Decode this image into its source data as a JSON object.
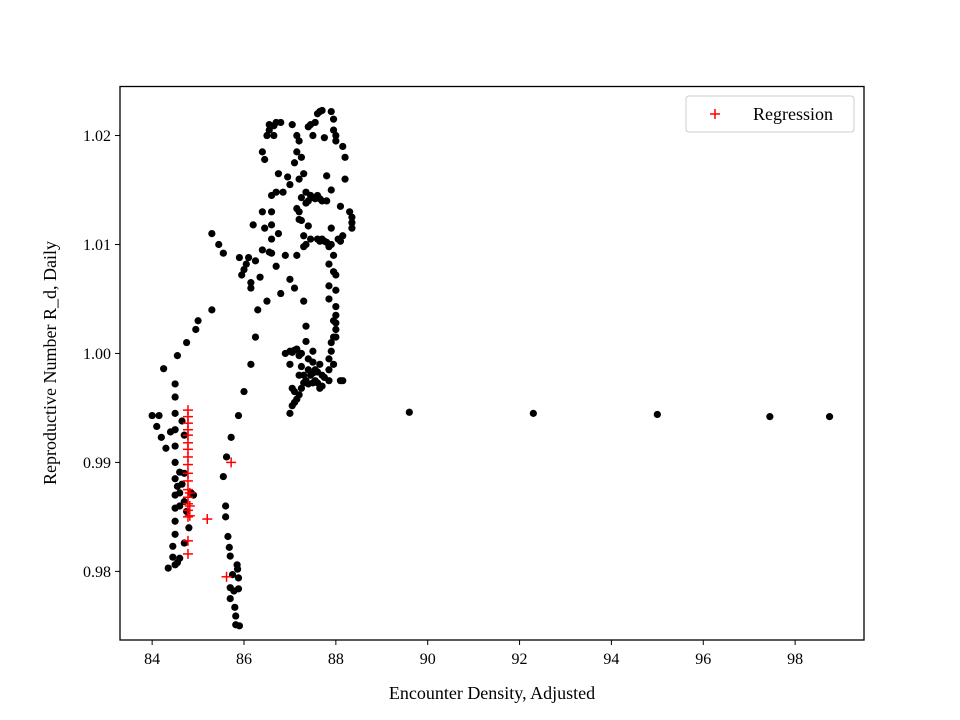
{
  "chart_data": {
    "type": "scatter",
    "xlabel": "Encounter Density, Adjusted",
    "ylabel": "Reproductive Number R_d, Daily",
    "xlim": [
      83.3,
      99.5
    ],
    "ylim": [
      0.9737,
      1.0245
    ],
    "x_ticks": [
      84,
      86,
      88,
      90,
      92,
      94,
      96,
      98
    ],
    "y_ticks": [
      0.98,
      0.99,
      1.0,
      1.01,
      1.02
    ],
    "y_tick_labels": [
      "0.98",
      "0.99",
      "1.00",
      "1.01",
      "1.02"
    ],
    "legend": {
      "position": "upper right",
      "entries": [
        "Regression"
      ]
    },
    "series": [
      {
        "marker": "dot",
        "color": "#000000",
        "points": [
          [
            84.0,
            0.9943
          ],
          [
            84.1,
            0.9933
          ],
          [
            84.15,
            0.9943
          ],
          [
            84.2,
            0.9923
          ],
          [
            84.25,
            0.9986
          ],
          [
            84.3,
            0.9913
          ],
          [
            84.35,
            0.9803
          ],
          [
            84.4,
            0.9928
          ],
          [
            84.45,
            0.9823
          ],
          [
            84.45,
            0.9813
          ],
          [
            84.5,
            0.9972
          ],
          [
            84.5,
            0.996
          ],
          [
            84.5,
            0.9945
          ],
          [
            84.5,
            0.993
          ],
          [
            84.5,
            0.9915
          ],
          [
            84.5,
            0.99
          ],
          [
            84.5,
            0.9885
          ],
          [
            84.5,
            0.987
          ],
          [
            84.5,
            0.9858
          ],
          [
            84.5,
            0.9846
          ],
          [
            84.5,
            0.9834
          ],
          [
            84.5,
            0.9806
          ],
          [
            84.55,
            0.9998
          ],
          [
            84.55,
            0.9878
          ],
          [
            84.55,
            0.9808
          ],
          [
            84.6,
            0.9891
          ],
          [
            84.6,
            0.9872
          ],
          [
            84.6,
            0.986
          ],
          [
            84.6,
            0.9812
          ],
          [
            84.65,
            0.9938
          ],
          [
            84.65,
            0.988
          ],
          [
            84.7,
            0.9925
          ],
          [
            84.7,
            0.989
          ],
          [
            84.7,
            0.9864
          ],
          [
            84.7,
            0.9826
          ],
          [
            84.75,
            1.001
          ],
          [
            84.75,
            0.9855
          ],
          [
            84.8,
            0.984
          ],
          [
            84.85,
            0.9872
          ],
          [
            84.9,
            0.987
          ],
          [
            84.95,
            1.0022
          ],
          [
            85.0,
            1.003
          ],
          [
            85.3,
            1.004
          ],
          [
            85.3,
            1.011
          ],
          [
            85.45,
            1.01
          ],
          [
            85.55,
            1.0092
          ],
          [
            85.55,
            0.9887
          ],
          [
            85.6,
            0.986
          ],
          [
            85.6,
            0.985
          ],
          [
            85.62,
            0.9905
          ],
          [
            85.65,
            0.9832
          ],
          [
            85.68,
            0.9822
          ],
          [
            85.7,
            0.9814
          ],
          [
            85.7,
            0.9785
          ],
          [
            85.7,
            0.9775
          ],
          [
            85.72,
            0.9923
          ],
          [
            85.75,
            0.9797
          ],
          [
            85.78,
            0.9782
          ],
          [
            85.8,
            0.9767
          ],
          [
            85.82,
            0.9759
          ],
          [
            85.82,
            0.9751
          ],
          [
            85.85,
            0.9806
          ],
          [
            85.86,
            0.9802
          ],
          [
            85.88,
            0.9794
          ],
          [
            85.88,
            0.9784
          ],
          [
            85.88,
            0.9943
          ],
          [
            85.9,
            0.975
          ],
          [
            85.9,
            1.0088
          ],
          [
            85.95,
            1.0072
          ],
          [
            86.0,
            1.0077
          ],
          [
            86.0,
            0.9965
          ],
          [
            86.05,
            1.0082
          ],
          [
            86.1,
            1.0088
          ],
          [
            86.15,
            1.0065
          ],
          [
            86.15,
            1.006
          ],
          [
            86.15,
            0.999
          ],
          [
            86.2,
            1.0118
          ],
          [
            86.25,
            1.0085
          ],
          [
            86.25,
            1.0015
          ],
          [
            86.3,
            1.004
          ],
          [
            86.35,
            1.007
          ],
          [
            86.4,
            1.0095
          ],
          [
            86.4,
            1.013
          ],
          [
            86.4,
            1.0185
          ],
          [
            86.45,
            1.0115
          ],
          [
            86.45,
            1.0178
          ],
          [
            86.5,
            1.02
          ],
          [
            86.5,
            1.0048
          ],
          [
            86.55,
            1.0093
          ],
          [
            86.55,
            1.0205
          ],
          [
            86.55,
            1.021
          ],
          [
            86.6,
            1.0145
          ],
          [
            86.6,
            1.013
          ],
          [
            86.6,
            1.0118
          ],
          [
            86.6,
            1.0105
          ],
          [
            86.6,
            1.0092
          ],
          [
            86.65,
            1.02
          ],
          [
            86.65,
            1.0209
          ],
          [
            86.7,
            1.0212
          ],
          [
            86.7,
            1.0148
          ],
          [
            86.7,
            1.008
          ],
          [
            86.75,
            1.0165
          ],
          [
            86.75,
            1.011
          ],
          [
            86.8,
            1.0212
          ],
          [
            86.8,
            1.0055
          ],
          [
            86.85,
            1.0148
          ],
          [
            86.9,
            1.009
          ],
          [
            86.9,
            1.0
          ],
          [
            86.95,
            1.0162
          ],
          [
            87.0,
            1.0002
          ],
          [
            87.0,
            0.999
          ],
          [
            87.0,
            0.9945
          ],
          [
            87.0,
            1.0068
          ],
          [
            87.0,
            1.0155
          ],
          [
            87.05,
            1.021
          ],
          [
            87.05,
            1.0001
          ],
          [
            87.05,
            0.9968
          ],
          [
            87.05,
            0.9952
          ],
          [
            87.1,
            1.0003
          ],
          [
            87.1,
            0.9965
          ],
          [
            87.1,
            0.9955
          ],
          [
            87.1,
            1.0175
          ],
          [
            87.1,
            1.006
          ],
          [
            87.15,
            1.02
          ],
          [
            87.15,
            1.0185
          ],
          [
            87.15,
            1.0133
          ],
          [
            87.15,
            1.009
          ],
          [
            87.15,
            1.0004
          ],
          [
            87.15,
            0.9958
          ],
          [
            87.2,
            1.0195
          ],
          [
            87.2,
            1.016
          ],
          [
            87.2,
            1.013
          ],
          [
            87.2,
            1.0123
          ],
          [
            87.2,
            0.9998
          ],
          [
            87.2,
            0.998
          ],
          [
            87.2,
            0.9962
          ],
          [
            87.25,
            1.018
          ],
          [
            87.25,
            1.0143
          ],
          [
            87.25,
            1.0122
          ],
          [
            87.25,
            1.0
          ],
          [
            87.25,
            0.9988
          ],
          [
            87.25,
            0.9968
          ],
          [
            87.3,
            1.0165
          ],
          [
            87.3,
            1.0108
          ],
          [
            87.3,
            1.0098
          ],
          [
            87.3,
            1.0048
          ],
          [
            87.3,
            0.998
          ],
          [
            87.3,
            0.9973
          ],
          [
            87.35,
            1.0148
          ],
          [
            87.35,
            1.0138
          ],
          [
            87.35,
            1.01
          ],
          [
            87.35,
            1.0025
          ],
          [
            87.35,
            1.0011
          ],
          [
            87.35,
            0.9975
          ],
          [
            87.4,
            1.0208
          ],
          [
            87.4,
            1.014
          ],
          [
            87.4,
            1.0117
          ],
          [
            87.4,
            0.9995
          ],
          [
            87.4,
            0.9985
          ],
          [
            87.4,
            0.9972
          ],
          [
            87.45,
            1.021
          ],
          [
            87.45,
            1.0145
          ],
          [
            87.45,
            1.0105
          ],
          [
            87.45,
            0.998
          ],
          [
            87.5,
            1.02
          ],
          [
            87.5,
            1.0143
          ],
          [
            87.5,
            1.0002
          ],
          [
            87.5,
            0.9992
          ],
          [
            87.5,
            0.9982
          ],
          [
            87.5,
            0.9973
          ],
          [
            87.55,
            1.0212
          ],
          [
            87.55,
            1.0142
          ],
          [
            87.55,
            0.9985
          ],
          [
            87.55,
            0.9975
          ],
          [
            87.6,
            1.022
          ],
          [
            87.6,
            1.0145
          ],
          [
            87.6,
            1.0105
          ],
          [
            87.6,
            0.9983
          ],
          [
            87.6,
            0.9973
          ],
          [
            87.65,
            1.0222
          ],
          [
            87.65,
            1.0142
          ],
          [
            87.65,
            1.0103
          ],
          [
            87.65,
            0.999
          ],
          [
            87.65,
            0.9968
          ],
          [
            87.7,
            1.0223
          ],
          [
            87.7,
            1.014
          ],
          [
            87.7,
            1.0105
          ],
          [
            87.7,
            0.998
          ],
          [
            87.7,
            0.997
          ],
          [
            87.75,
            1.0198
          ],
          [
            87.75,
            1.0103
          ],
          [
            87.75,
            0.9978
          ],
          [
            87.8,
            1.0163
          ],
          [
            87.8,
            1.014
          ],
          [
            87.8,
            1.0102
          ],
          [
            87.85,
            1.0098
          ],
          [
            87.85,
            1.0082
          ],
          [
            87.85,
            1.0062
          ],
          [
            87.85,
            1.005
          ],
          [
            87.85,
            0.9995
          ],
          [
            87.85,
            0.9985
          ],
          [
            87.85,
            0.9975
          ],
          [
            87.9,
            1.0222
          ],
          [
            87.9,
            1.015
          ],
          [
            87.9,
            1.0115
          ],
          [
            87.9,
            1.01
          ],
          [
            87.9,
            1.001
          ],
          [
            87.9,
            1.0002
          ],
          [
            87.95,
            1.0215
          ],
          [
            87.95,
            1.0205
          ],
          [
            87.95,
            1.009
          ],
          [
            87.95,
            1.0075
          ],
          [
            87.95,
            1.003
          ],
          [
            87.95,
            1.0015
          ],
          [
            87.95,
            0.999
          ],
          [
            88.0,
            1.02
          ],
          [
            88.0,
            1.0195
          ],
          [
            88.0,
            1.0072
          ],
          [
            88.0,
            1.0058
          ],
          [
            88.0,
            1.0043
          ],
          [
            88.0,
            1.0035
          ],
          [
            88.0,
            1.0028
          ],
          [
            88.0,
            1.0022
          ],
          [
            88.0,
            1.0015
          ],
          [
            88.05,
            1.0105
          ],
          [
            88.1,
            1.0103
          ],
          [
            88.1,
            1.0135
          ],
          [
            88.1,
            0.9975
          ],
          [
            88.15,
            1.0108
          ],
          [
            88.15,
            1.019
          ],
          [
            88.15,
            0.9975
          ],
          [
            88.2,
            1.018
          ],
          [
            88.2,
            1.016
          ],
          [
            88.3,
            1.013
          ],
          [
            88.35,
            1.0115
          ],
          [
            88.35,
            1.012
          ],
          [
            88.35,
            1.0125
          ],
          [
            89.6,
            0.9946
          ],
          [
            92.3,
            0.9945
          ],
          [
            95.0,
            0.9944
          ],
          [
            97.45,
            0.9942
          ],
          [
            98.75,
            0.9942
          ]
        ]
      },
      {
        "name": "Regression",
        "marker": "plus",
        "color": "#ff0000",
        "points": [
          [
            84.78,
            0.9948
          ],
          [
            84.78,
            0.9942
          ],
          [
            84.78,
            0.9936
          ],
          [
            84.78,
            0.993
          ],
          [
            84.78,
            0.9925
          ],
          [
            84.78,
            0.9918
          ],
          [
            84.78,
            0.9912
          ],
          [
            84.78,
            0.9905
          ],
          [
            84.78,
            0.9898
          ],
          [
            84.78,
            0.989
          ],
          [
            84.78,
            0.9883
          ],
          [
            84.78,
            0.9875
          ],
          [
            84.78,
            0.9868
          ],
          [
            84.78,
            0.9862
          ],
          [
            84.78,
            0.9856
          ],
          [
            84.78,
            0.985
          ],
          [
            84.78,
            0.9828
          ],
          [
            84.78,
            0.9816
          ],
          [
            84.82,
            0.9872
          ],
          [
            84.82,
            0.986
          ],
          [
            84.82,
            0.9851
          ],
          [
            85.2,
            0.9848
          ],
          [
            85.62,
            0.9795
          ],
          [
            85.72,
            0.99
          ]
        ]
      }
    ]
  }
}
